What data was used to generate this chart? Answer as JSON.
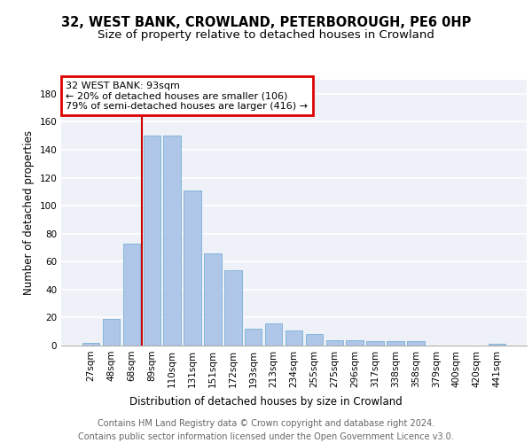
{
  "title": "32, WEST BANK, CROWLAND, PETERBOROUGH, PE6 0HP",
  "subtitle": "Size of property relative to detached houses in Crowland",
  "xlabel": "Distribution of detached houses by size in Crowland",
  "ylabel": "Number of detached properties",
  "categories": [
    "27sqm",
    "48sqm",
    "68sqm",
    "89sqm",
    "110sqm",
    "131sqm",
    "151sqm",
    "172sqm",
    "193sqm",
    "213sqm",
    "234sqm",
    "255sqm",
    "275sqm",
    "296sqm",
    "317sqm",
    "338sqm",
    "358sqm",
    "379sqm",
    "400sqm",
    "420sqm",
    "441sqm"
  ],
  "values": [
    2,
    19,
    73,
    150,
    150,
    111,
    66,
    54,
    12,
    16,
    11,
    8,
    4,
    4,
    3,
    3,
    3,
    0,
    0,
    0,
    1
  ],
  "bar_color": "#aec6e8",
  "bar_edge_color": "#7aafd4",
  "ylim": [
    0,
    190
  ],
  "yticks": [
    0,
    20,
    40,
    60,
    80,
    100,
    120,
    140,
    160,
    180
  ],
  "annotation_box_text": "32 WEST BANK: 93sqm\n← 20% of detached houses are smaller (106)\n79% of semi-detached houses are larger (416) →",
  "annotation_box_color": "#dd0000",
  "red_line_color": "#cc0000",
  "footer_line1": "Contains HM Land Registry data © Crown copyright and database right 2024.",
  "footer_line2": "Contains public sector information licensed under the Open Government Licence v3.0.",
  "background_color": "#eef2f8",
  "grid_color": "#ffffff",
  "title_fontsize": 10.5,
  "subtitle_fontsize": 9.5,
  "axis_label_fontsize": 8.5,
  "tick_fontsize": 7.5,
  "footer_fontsize": 7,
  "annotation_fontsize": 8
}
